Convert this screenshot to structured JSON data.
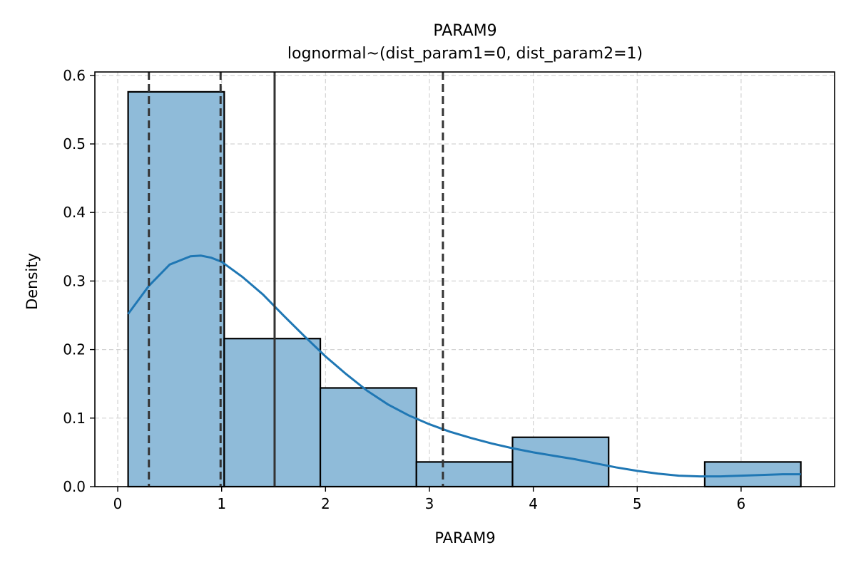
{
  "chart_data": {
    "type": "bar",
    "title": "PARAM9",
    "subtitle": "lognormal~(dist_param1=0, dist_param2=1)",
    "xlabel": "PARAM9",
    "ylabel": "Density",
    "xlim": [
      -0.22,
      6.9
    ],
    "ylim": [
      0,
      0.605
    ],
    "x_ticks": [
      0,
      1,
      2,
      3,
      4,
      5,
      6
    ],
    "y_ticks": [
      0.0,
      0.1,
      0.2,
      0.3,
      0.4,
      0.5,
      0.6
    ],
    "y_tick_labels": [
      "0.0",
      "0.1",
      "0.2",
      "0.3",
      "0.4",
      "0.5",
      "0.6"
    ],
    "grid": true,
    "histogram": {
      "bin_edges": [
        0.1,
        1.025,
        1.95,
        2.875,
        3.8,
        4.725,
        5.65,
        6.575
      ],
      "values": [
        0.576,
        0.216,
        0.144,
        0.036,
        0.072,
        0.0,
        0.036
      ],
      "fill_color": "#8fbbd9",
      "edge_color": "#000000"
    },
    "kde": {
      "color": "#1f77b4",
      "x": [
        0.1,
        0.3,
        0.5,
        0.7,
        0.8,
        0.9,
        1.0,
        1.2,
        1.4,
        1.6,
        1.8,
        2.0,
        2.2,
        2.4,
        2.6,
        2.8,
        3.0,
        3.2,
        3.4,
        3.6,
        3.8,
        4.0,
        4.2,
        4.4,
        4.6,
        4.8,
        5.0,
        5.2,
        5.4,
        5.6,
        5.8,
        6.0,
        6.2,
        6.4,
        6.575
      ],
      "y": [
        0.252,
        0.293,
        0.324,
        0.336,
        0.337,
        0.334,
        0.328,
        0.306,
        0.28,
        0.249,
        0.219,
        0.19,
        0.164,
        0.14,
        0.12,
        0.104,
        0.091,
        0.08,
        0.071,
        0.063,
        0.056,
        0.05,
        0.045,
        0.04,
        0.034,
        0.028,
        0.023,
        0.019,
        0.016,
        0.015,
        0.015,
        0.016,
        0.017,
        0.018,
        0.018
      ]
    },
    "reference_lines": [
      {
        "x": 0.3,
        "style": "dashed"
      },
      {
        "x": 0.99,
        "style": "dashed"
      },
      {
        "x": 1.51,
        "style": "solid"
      },
      {
        "x": 3.13,
        "style": "dashed"
      }
    ]
  }
}
